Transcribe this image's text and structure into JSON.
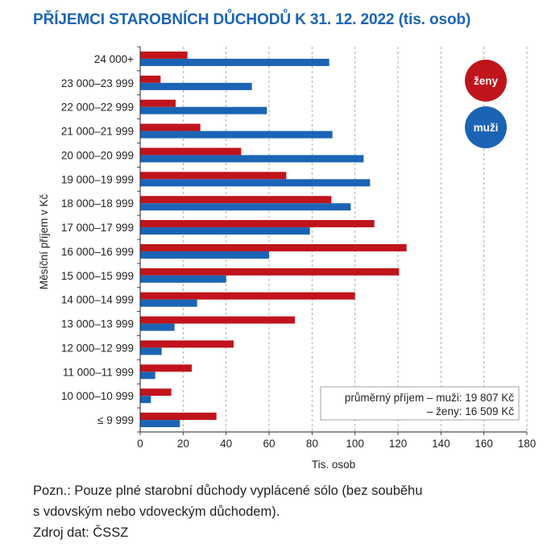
{
  "title": "PŘÍJEMCI STAROBNÍCH DŮCHODŮ K 31. 12. 2022 (tis. osob)",
  "colors": {
    "title": "#1b64b5",
    "zeny": "#c0141c",
    "muzi": "#1b64b5",
    "grid": "#9a9a9a"
  },
  "chart_data": {
    "type": "bar",
    "orientation": "horizontal",
    "title": "PŘÍJEMCI STAROBNÍCH DŮCHODŮ K 31. 12. 2022 (tis. osob)",
    "xlabel": "Tis. osob",
    "ylabel": "Měsíční příjem v Kč",
    "xlim": [
      0,
      180
    ],
    "xticks": [
      0,
      20,
      40,
      60,
      80,
      100,
      120,
      140,
      160,
      180
    ],
    "grid": "vertical dashed",
    "categories": [
      "24 000+",
      "23 000–23 999",
      "22 000–22 999",
      "21 000–21 999",
      "20 000–20 999",
      "19 000–19 999",
      "18 000–18 999",
      "17 000–17 999",
      "16 000–16 999",
      "15 000–15 999",
      "14 000–14 999",
      "13 000–13 999",
      "12 000–12 999",
      "11 000–11 999",
      "10 000–10 999",
      "≤ 9 999"
    ],
    "series": [
      {
        "name": "ženy",
        "color": "#c0141c",
        "values": [
          22,
          9.5,
          16.5,
          28,
          47,
          68,
          89,
          109,
          124,
          120.5,
          100,
          72,
          43.5,
          24,
          14.5,
          35.5
        ]
      },
      {
        "name": "muži",
        "color": "#1b64b5",
        "values": [
          88,
          52,
          59,
          89.5,
          104,
          107,
          98,
          79,
          60,
          40,
          26.5,
          16,
          10,
          7,
          5,
          18.5
        ]
      }
    ],
    "legend": {
      "placement": "top-right",
      "items": [
        "ženy",
        "muži"
      ]
    },
    "annotation": {
      "line1": "průměrný příjem – muži: 19 807 Kč",
      "line2": "– ženy: 16 509 Kč"
    }
  },
  "footnote": {
    "line1": "Pozn.: Pouze plné starobní důchody vyplácené sólo (bez souběhu",
    "line2": "s vdovským nebo vdoveckým důchodem).",
    "line3": "Zdroj dat: ČSSZ"
  }
}
